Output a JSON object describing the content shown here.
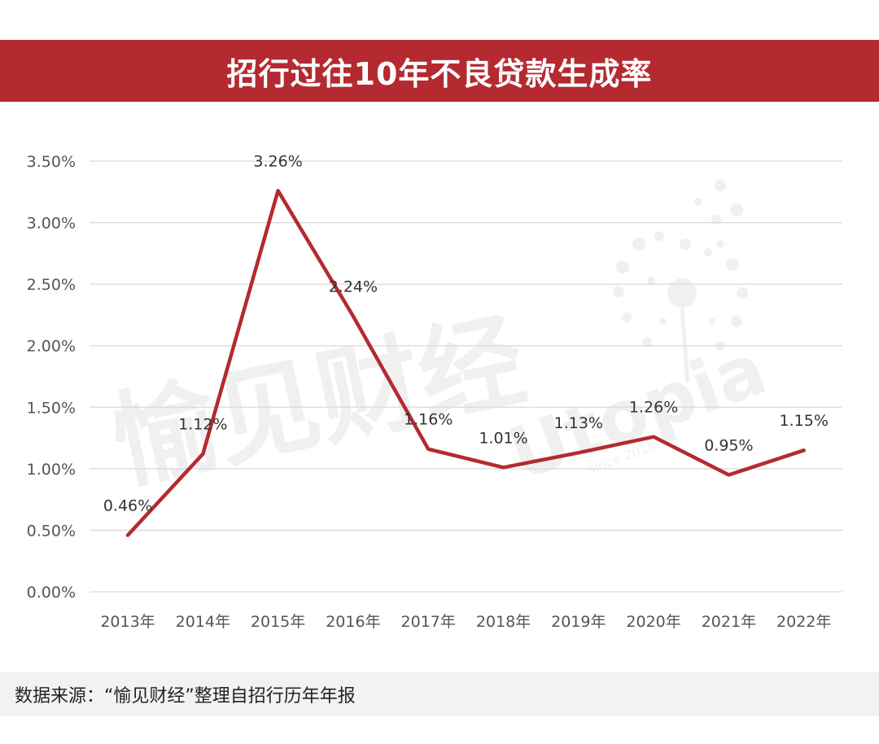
{
  "header": {
    "title": "招行过往10年不良贷款生成率"
  },
  "footer": {
    "source": "数据来源：“愉见财经”整理自招行历年年报"
  },
  "watermark": {
    "text": "愉见财经",
    "brand": "Utopia",
    "tagline": "since 2018"
  },
  "colors": {
    "header_bg": "#b42a30",
    "line": "#b42a30",
    "grid": "#d9d9d9",
    "footer_bg": "#f2f2f2"
  },
  "chart_data": {
    "type": "line",
    "title": "",
    "xlabel": "",
    "ylabel": "",
    "categories": [
      "2013年",
      "2014年",
      "2015年",
      "2016年",
      "2017年",
      "2018年",
      "2019年",
      "2020年",
      "2021年",
      "2022年"
    ],
    "series": [
      {
        "values": [
          0.46,
          1.12,
          3.26,
          2.24,
          1.16,
          1.01,
          1.13,
          1.26,
          0.95,
          1.15
        ],
        "labels": [
          "0.46%",
          "1.12%",
          "3.26%",
          "2.24%",
          "1.16%",
          "1.01%",
          "1.13%",
          "1.26%",
          "0.95%",
          "1.15%"
        ]
      }
    ],
    "ylim": [
      0,
      3.5
    ],
    "yticks": [
      0,
      0.5,
      1.0,
      1.5,
      2.0,
      2.5,
      3.0,
      3.5
    ],
    "ytick_labels": [
      "0.00%",
      "0.50%",
      "1.00%",
      "1.50%",
      "2.00%",
      "2.50%",
      "3.00%",
      "3.50%"
    ],
    "grid": true,
    "legend": "none"
  }
}
